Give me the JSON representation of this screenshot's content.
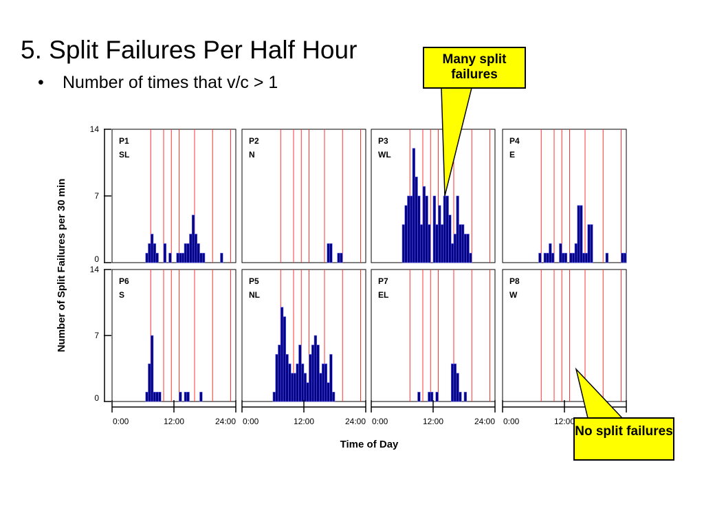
{
  "slide": {
    "title": "5. Split Failures Per Half Hour",
    "bullet": "Number of times that v/c > 1"
  },
  "callouts": {
    "many": "Many split failures",
    "none": "No split failures"
  },
  "colors": {
    "bar_fill": "#000080",
    "bar_edge": "#6a6aff",
    "guide_line": "#ff3030",
    "callout_fill": "#ffff00"
  },
  "chart_data": {
    "type": "bar",
    "ylabel": "Number of Split Failures per 30 min",
    "xlabel": "Time of Day",
    "ylim": [
      0,
      14
    ],
    "xlim_hours": [
      0,
      24
    ],
    "y_ticks": [
      "0",
      "7",
      "14"
    ],
    "x_ticks": [
      "0:00",
      "12:00",
      "24:00"
    ],
    "x_tick_hours": [
      0,
      12,
      24
    ],
    "bin_hours": 0.5,
    "guide_line_hours": [
      7.5,
      10,
      11.5,
      13,
      16,
      19.5,
      23
    ],
    "panels": [
      {
        "name": "P1",
        "dir": "SL",
        "bars": [
          [
            6.5,
            1
          ],
          [
            7,
            2
          ],
          [
            7.5,
            3
          ],
          [
            8,
            2
          ],
          [
            8.5,
            1
          ],
          [
            10,
            2
          ],
          [
            11,
            1
          ],
          [
            12.5,
            1
          ],
          [
            13,
            1
          ],
          [
            13.5,
            1
          ],
          [
            14,
            2
          ],
          [
            14.5,
            2
          ],
          [
            15,
            3
          ],
          [
            15.5,
            5
          ],
          [
            16,
            3
          ],
          [
            16.5,
            2
          ],
          [
            17,
            1
          ],
          [
            17.5,
            1
          ],
          [
            21,
            1
          ]
        ]
      },
      {
        "name": "P2",
        "dir": "N",
        "bars": [
          [
            16.5,
            2
          ],
          [
            17,
            2
          ],
          [
            18.5,
            1
          ],
          [
            19,
            1
          ]
        ]
      },
      {
        "name": "P3",
        "dir": "WL",
        "bars": [
          [
            6,
            4
          ],
          [
            6.5,
            6
          ],
          [
            7,
            7
          ],
          [
            7.5,
            7
          ],
          [
            8,
            12
          ],
          [
            8.5,
            9
          ],
          [
            9,
            7
          ],
          [
            9.5,
            4
          ],
          [
            10,
            8
          ],
          [
            10.5,
            7
          ],
          [
            11,
            4
          ],
          [
            12,
            7
          ],
          [
            12.5,
            4
          ],
          [
            13,
            6
          ],
          [
            13.5,
            4
          ],
          [
            14,
            7
          ],
          [
            14.5,
            7
          ],
          [
            15,
            5
          ],
          [
            15.5,
            2
          ],
          [
            16,
            3
          ],
          [
            16.5,
            7
          ],
          [
            17,
            4
          ],
          [
            17.5,
            4
          ],
          [
            18,
            3
          ],
          [
            18.5,
            3
          ],
          [
            19,
            1
          ]
        ]
      },
      {
        "name": "P4",
        "dir": "E",
        "bars": [
          [
            7,
            1
          ],
          [
            8,
            1
          ],
          [
            8.5,
            1
          ],
          [
            9,
            2
          ],
          [
            9.5,
            1
          ],
          [
            11,
            2
          ],
          [
            11.5,
            1
          ],
          [
            12,
            1
          ],
          [
            13,
            1
          ],
          [
            13.5,
            1
          ],
          [
            14,
            2
          ],
          [
            14.5,
            6
          ],
          [
            15,
            6
          ],
          [
            15.5,
            1
          ],
          [
            16,
            1
          ],
          [
            16.5,
            4
          ],
          [
            17,
            4
          ],
          [
            20,
            1
          ],
          [
            23,
            1
          ],
          [
            23.5,
            1
          ]
        ]
      },
      {
        "name": "P6",
        "dir": "S",
        "bars": [
          [
            6.5,
            1
          ],
          [
            7,
            4
          ],
          [
            7.5,
            7
          ],
          [
            8,
            1
          ],
          [
            8.5,
            1
          ],
          [
            9,
            1
          ],
          [
            13,
            1
          ],
          [
            14,
            1
          ],
          [
            14.5,
            1
          ],
          [
            17,
            1
          ]
        ]
      },
      {
        "name": "P5",
        "dir": "NL",
        "bars": [
          [
            6,
            1
          ],
          [
            6.5,
            5
          ],
          [
            7,
            6
          ],
          [
            7.5,
            10
          ],
          [
            8,
            9
          ],
          [
            8.5,
            5
          ],
          [
            9,
            4
          ],
          [
            9.5,
            3
          ],
          [
            10,
            3
          ],
          [
            10.5,
            4
          ],
          [
            11,
            6
          ],
          [
            11.5,
            4
          ],
          [
            12,
            3
          ],
          [
            12.5,
            2
          ],
          [
            13,
            5
          ],
          [
            13.5,
            6
          ],
          [
            14,
            7
          ],
          [
            14.5,
            6
          ],
          [
            15,
            3
          ],
          [
            15.5,
            4
          ],
          [
            16,
            4
          ],
          [
            16.5,
            2
          ],
          [
            17,
            5
          ],
          [
            17.5,
            1
          ]
        ]
      },
      {
        "name": "P7",
        "dir": "EL",
        "bars": [
          [
            9,
            1
          ],
          [
            11,
            1
          ],
          [
            11.5,
            1
          ],
          [
            12.5,
            1
          ],
          [
            15.5,
            4
          ],
          [
            16,
            4
          ],
          [
            16.5,
            3
          ],
          [
            17,
            1
          ],
          [
            18,
            1
          ]
        ]
      },
      {
        "name": "P8",
        "dir": "W",
        "bars": []
      }
    ]
  }
}
